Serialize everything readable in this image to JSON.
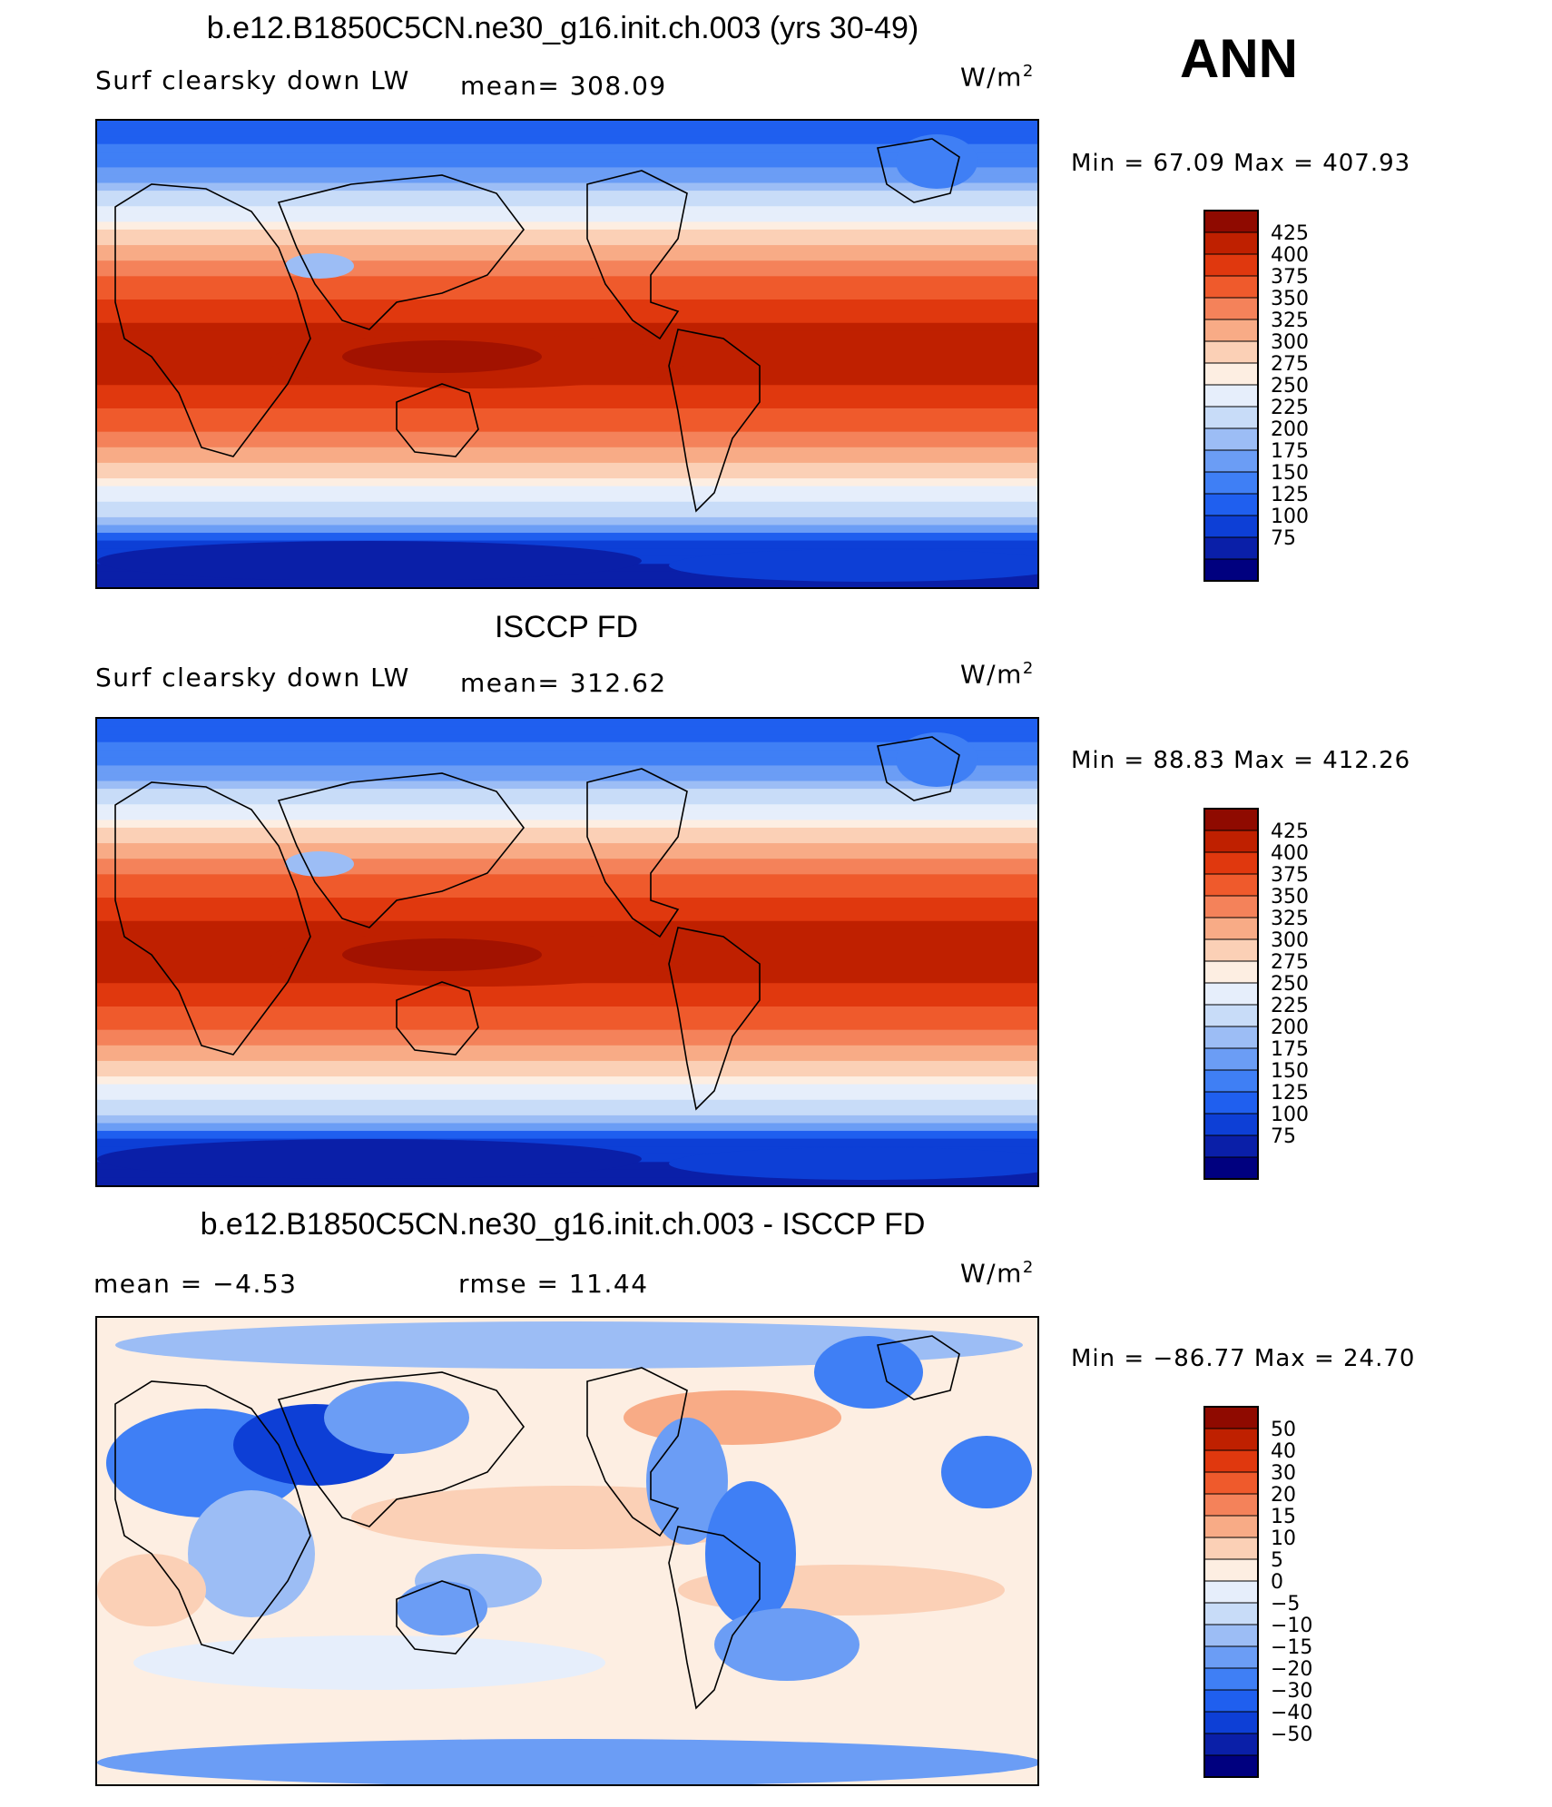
{
  "header": {
    "season": "ANN"
  },
  "panels": [
    {
      "title": "b.e12.B1850C5CN.ne30_g16.init.ch.003 (yrs 30-49)",
      "left_label": "Surf clearsky down LW",
      "stat_label": "mean= 308.09",
      "units_base": "W/m",
      "units_exp": "2",
      "minmax": "Min =   67.09  Max  =  407.93",
      "kind": "absolute"
    },
    {
      "title": "ISCCP FD",
      "left_label": "Surf clearsky down LW",
      "stat_label": "mean= 312.62",
      "units_base": "W/m",
      "units_exp": "2",
      "minmax": "Min =   88.83  Max  =  412.26",
      "kind": "absolute"
    },
    {
      "title": "b.e12.B1850C5CN.ne30_g16.init.ch.003 - ISCCP FD",
      "left_label": "mean =   −4.53",
      "stat_label": "rmse =    11.44",
      "units_base": "W/m",
      "units_exp": "2",
      "minmax": "Min  =  −86.77  Max  =    24.70",
      "kind": "difference"
    }
  ],
  "chart_data": [
    {
      "type": "heatmap",
      "title": "b.e12.B1850C5CN.ne30_g16.init.ch.003 (yrs 30-49)",
      "variable": "Surf clearsky down LW",
      "units": "W/m2",
      "mean": 308.09,
      "min": 67.09,
      "max": 407.93,
      "contour_levels": [
        75,
        100,
        125,
        150,
        175,
        200,
        225,
        250,
        275,
        300,
        325,
        350,
        375,
        400,
        425
      ],
      "colors": [
        "#00007f",
        "#0a1fa8",
        "#0d3fd6",
        "#1f5fef",
        "#3f7ff5",
        "#6b9df5",
        "#9cbdf5",
        "#c8dcf8",
        "#e6eefb",
        "#fdeee2",
        "#fbd0b6",
        "#f8ab86",
        "#f4825a",
        "#ef5a2c",
        "#e0380e",
        "#bf2000",
        "#8f0a00"
      ],
      "grid": false,
      "legend": "right"
    },
    {
      "type": "heatmap",
      "title": "ISCCP FD",
      "variable": "Surf clearsky down LW",
      "units": "W/m2",
      "mean": 312.62,
      "min": 88.83,
      "max": 412.26,
      "contour_levels": [
        75,
        100,
        125,
        150,
        175,
        200,
        225,
        250,
        275,
        300,
        325,
        350,
        375,
        400,
        425
      ],
      "colors": [
        "#00007f",
        "#0a1fa8",
        "#0d3fd6",
        "#1f5fef",
        "#3f7ff5",
        "#6b9df5",
        "#9cbdf5",
        "#c8dcf8",
        "#e6eefb",
        "#fdeee2",
        "#fbd0b6",
        "#f8ab86",
        "#f4825a",
        "#ef5a2c",
        "#e0380e",
        "#bf2000",
        "#8f0a00"
      ],
      "grid": false,
      "legend": "right"
    },
    {
      "type": "heatmap",
      "title": "b.e12.B1850C5CN.ne30_g16.init.ch.003 - ISCCP FD",
      "units": "W/m2",
      "mean": -4.53,
      "rmse": 11.44,
      "min": -86.77,
      "max": 24.7,
      "contour_levels": [
        -50,
        -40,
        -30,
        -20,
        -15,
        -10,
        -5,
        0,
        5,
        10,
        15,
        20,
        30,
        40,
        50
      ],
      "colors": [
        "#00007f",
        "#0a1fa8",
        "#0d3fd6",
        "#1f5fef",
        "#3f7ff5",
        "#6b9df5",
        "#9cbdf5",
        "#c8dcf8",
        "#e6eefb",
        "#fdeee2",
        "#fbd0b6",
        "#f8ab86",
        "#f4825a",
        "#ef5a2c",
        "#e0380e",
        "#bf2000",
        "#8f0a00"
      ],
      "grid": false,
      "legend": "right"
    }
  ]
}
